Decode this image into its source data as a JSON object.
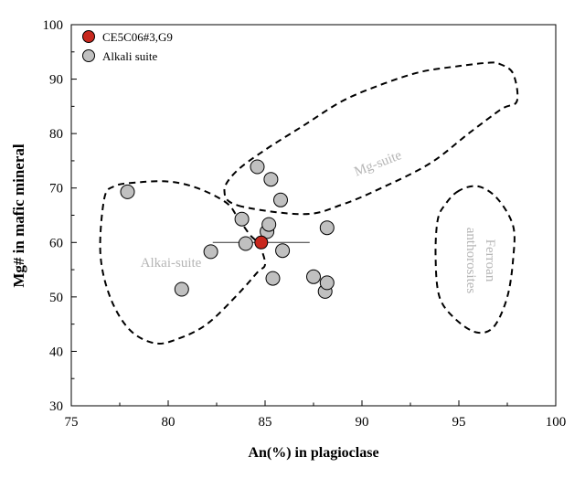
{
  "chart_data": {
    "type": "scatter",
    "xlabel": "An(%) in plagioclase",
    "ylabel": "Mg# in mafic mineral",
    "xlim": [
      75,
      100
    ],
    "ylim": [
      30,
      100
    ],
    "x_ticks": [
      "75",
      "80",
      "85",
      "90",
      "95",
      "100"
    ],
    "y_ticks": [
      "30",
      "40",
      "50",
      "60",
      "70",
      "80",
      "90",
      "100"
    ],
    "legend_position": "top-left",
    "series": [
      {
        "name": "CE5C06#3,G9",
        "color": "#c8281e",
        "points": [
          {
            "x": 84.8,
            "y": 60.0
          }
        ],
        "error_x": [
          82.3,
          87.3
        ]
      },
      {
        "name": "Alkali suite",
        "color": "#c0c0c0",
        "points": [
          {
            "x": 77.9,
            "y": 69.3
          },
          {
            "x": 80.7,
            "y": 51.4
          },
          {
            "x": 82.2,
            "y": 58.3
          },
          {
            "x": 83.8,
            "y": 64.3
          },
          {
            "x": 84.0,
            "y": 59.8
          },
          {
            "x": 84.6,
            "y": 73.9
          },
          {
            "x": 85.1,
            "y": 62.0
          },
          {
            "x": 85.2,
            "y": 63.3
          },
          {
            "x": 85.3,
            "y": 71.6
          },
          {
            "x": 85.4,
            "y": 53.4
          },
          {
            "x": 85.8,
            "y": 67.8
          },
          {
            "x": 85.9,
            "y": 58.5
          },
          {
            "x": 87.5,
            "y": 53.7
          },
          {
            "x": 88.1,
            "y": 51.0
          },
          {
            "x": 88.2,
            "y": 52.6
          },
          {
            "x": 88.2,
            "y": 62.7
          }
        ]
      }
    ],
    "regions": [
      {
        "label": "Mg-suite",
        "path": [
          [
            83.6,
            66.8
          ],
          [
            87.0,
            65.2
          ],
          [
            89.0,
            67.0
          ],
          [
            91.0,
            70.0
          ],
          [
            93.5,
            74.5
          ],
          [
            95.5,
            80.0
          ],
          [
            97.2,
            84.5
          ],
          [
            98.0,
            86.0
          ],
          [
            97.8,
            91.0
          ],
          [
            97.1,
            92.8
          ],
          [
            96.5,
            93.0
          ],
          [
            95.0,
            92.4
          ],
          [
            93.0,
            91.3
          ],
          [
            91.0,
            89.0
          ],
          [
            89.0,
            86.0
          ],
          [
            87.0,
            81.5
          ],
          [
            85.0,
            77.0
          ],
          [
            83.5,
            73.0
          ],
          [
            82.9,
            69.5
          ],
          [
            83.6,
            66.8
          ]
        ]
      },
      {
        "label": "Alkai-suite",
        "path": [
          [
            78.3,
            71.0
          ],
          [
            77.2,
            70.3
          ],
          [
            76.7,
            68.0
          ],
          [
            76.5,
            58.0
          ],
          [
            77.0,
            50.0
          ],
          [
            78.0,
            44.0
          ],
          [
            79.3,
            41.5
          ],
          [
            80.5,
            42.3
          ],
          [
            82.0,
            45.0
          ],
          [
            83.6,
            50.5
          ],
          [
            84.6,
            54.5
          ],
          [
            85.0,
            56.0
          ],
          [
            84.7,
            59.5
          ],
          [
            84.2,
            61.5
          ],
          [
            83.6,
            64.5
          ],
          [
            83.0,
            67.3
          ],
          [
            81.5,
            70.0
          ],
          [
            80.0,
            71.2
          ],
          [
            78.3,
            71.0
          ]
        ]
      },
      {
        "label": "Ferroan anthorosites",
        "path": [
          [
            95.0,
            69.5
          ],
          [
            94.3,
            67.0
          ],
          [
            93.9,
            64.0
          ],
          [
            93.8,
            57.0
          ],
          [
            94.0,
            50.0
          ],
          [
            94.8,
            46.0
          ],
          [
            95.9,
            43.5
          ],
          [
            96.8,
            44.5
          ],
          [
            97.5,
            50.0
          ],
          [
            97.8,
            57.0
          ],
          [
            97.8,
            63.0
          ],
          [
            97.0,
            68.0
          ],
          [
            96.0,
            70.3
          ],
          [
            95.0,
            69.5
          ]
        ]
      }
    ],
    "region_labels": {
      "mg_suite": "Mg-suite",
      "alkai_suite": "Alkai-suite",
      "ferroan_line1": "Ferroan",
      "ferroan_line2": "anthorosites"
    }
  }
}
